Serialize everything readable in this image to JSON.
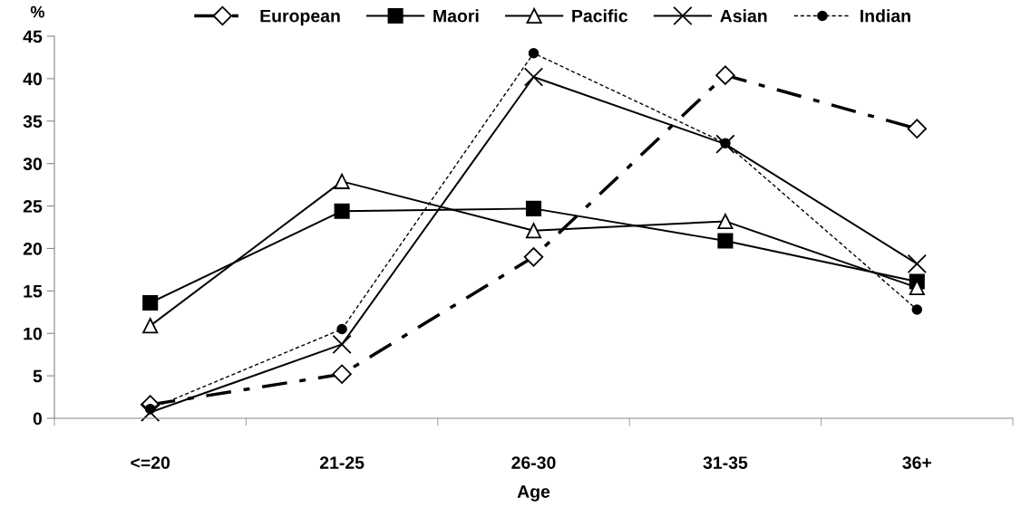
{
  "chart_data": {
    "type": "line",
    "xlabel": "Age",
    "ylabel": "%",
    "categories": [
      "<=20",
      "21-25",
      "26-30",
      "31-35",
      "36+"
    ],
    "series": [
      {
        "name": "European",
        "color": "#000000",
        "marker": "diamond",
        "line_style": "dashdot",
        "values": [
          1.6,
          5.2,
          19.0,
          40.4,
          34.1
        ]
      },
      {
        "name": "Maori",
        "color": "#000000",
        "marker": "square",
        "line_style": "solid",
        "values": [
          13.6,
          24.4,
          24.7,
          20.9,
          16.1
        ]
      },
      {
        "name": "Pacific",
        "color": "#000000",
        "marker": "triangle",
        "line_style": "solid",
        "values": [
          10.9,
          27.9,
          22.1,
          23.2,
          15.4
        ]
      },
      {
        "name": "Asian",
        "color": "#000000",
        "marker": "cross",
        "line_style": "solid",
        "values": [
          0.7,
          8.7,
          40.2,
          32.3,
          18.2
        ]
      },
      {
        "name": "Indian",
        "color": "#000000",
        "marker": "circle",
        "line_style": "dashed",
        "values": [
          1.1,
          10.5,
          43.0,
          32.4,
          12.8
        ]
      }
    ],
    "ylim": [
      0,
      45
    ],
    "yticks": [
      0,
      5,
      10,
      15,
      20,
      25,
      30,
      35,
      40,
      45
    ],
    "grid": false,
    "legend": "top"
  }
}
